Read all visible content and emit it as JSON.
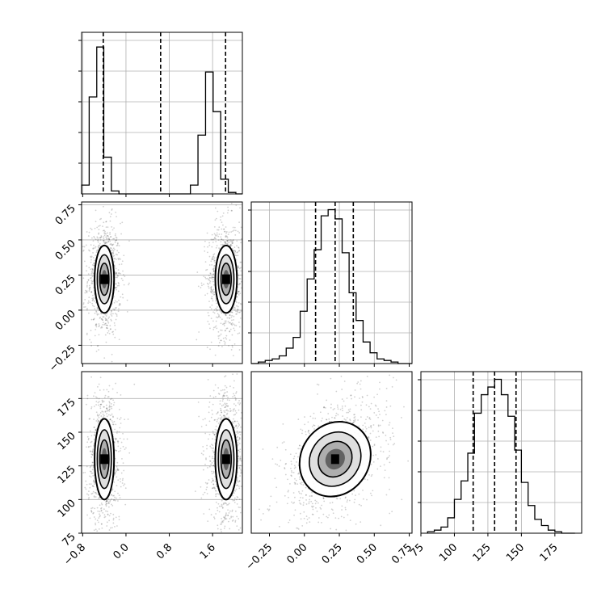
{
  "chart_data": [
    {
      "panel": "hist-param-1",
      "type": "bar",
      "x_ticks": [
        -0.8,
        0.0,
        0.8,
        1.6
      ],
      "x_tick_labels": [
        "−0.8",
        "0.0",
        "0.8",
        "1.6"
      ],
      "xlim": [
        -0.82,
        2.15
      ],
      "bin_edges": [
        -0.82,
        -0.68,
        -0.54,
        -0.41,
        -0.27,
        -0.13,
        0.01,
        1.19,
        1.33,
        1.47,
        1.61,
        1.75,
        1.89,
        2.03,
        2.15
      ],
      "values": [
        0.06,
        0.66,
        1.0,
        0.25,
        0.02,
        0.0,
        0.0,
        0.06,
        0.4,
        0.83,
        0.56,
        0.1,
        0.01,
        0.0
      ],
      "quantile_lines": [
        -0.42,
        0.64,
        1.84
      ],
      "ylim": [
        0,
        1.1
      ]
    },
    {
      "panel": "hist-param-2",
      "type": "bar",
      "x_ticks": [
        -0.25,
        0.0,
        0.25,
        0.5,
        0.75
      ],
      "xlim": [
        -0.38,
        0.77
      ],
      "bin_edges": [
        -0.38,
        -0.33,
        -0.28,
        -0.23,
        -0.18,
        -0.13,
        -0.08,
        -0.03,
        0.02,
        0.07,
        0.12,
        0.17,
        0.22,
        0.27,
        0.32,
        0.37,
        0.42,
        0.47,
        0.52,
        0.57,
        0.62,
        0.67,
        0.72,
        0.77
      ],
      "values": [
        0.0,
        0.01,
        0.02,
        0.03,
        0.05,
        0.1,
        0.17,
        0.34,
        0.55,
        0.74,
        0.96,
        1.0,
        0.94,
        0.72,
        0.46,
        0.28,
        0.14,
        0.07,
        0.03,
        0.02,
        0.01,
        0.0,
        0.0
      ],
      "quantile_lines": [
        0.08,
        0.22,
        0.35
      ],
      "ylim": [
        0,
        1.05
      ]
    },
    {
      "panel": "hist-param-3",
      "type": "bar",
      "x_ticks": [
        75,
        100,
        125,
        150,
        175
      ],
      "x_tick_labels": [
        "75",
        "100",
        "125",
        "150",
        "175"
      ],
      "xlim": [
        75,
        195
      ],
      "bin_edges": [
        80,
        85,
        90,
        95,
        100,
        105,
        110,
        115,
        120,
        125,
        130,
        135,
        140,
        145,
        150,
        155,
        160,
        165,
        170,
        175,
        180,
        185,
        190
      ],
      "values": [
        0.01,
        0.02,
        0.04,
        0.1,
        0.22,
        0.34,
        0.52,
        0.78,
        0.9,
        0.95,
        1.0,
        0.9,
        0.76,
        0.54,
        0.33,
        0.18,
        0.09,
        0.05,
        0.02,
        0.01,
        0.0,
        0.0
      ],
      "quantile_lines": [
        114,
        130,
        146
      ],
      "ylim": [
        0,
        1.05
      ]
    },
    {
      "panel": "scatter-param-1-vs-param-2",
      "type": "scatter",
      "xlim": [
        -0.82,
        2.15
      ],
      "ylim": [
        -0.38,
        0.77
      ],
      "y_ticks": [
        -0.25,
        0.0,
        0.25,
        0.5,
        0.75
      ],
      "y_tick_labels": [
        "−0.25",
        "0.00",
        "0.25",
        "0.50",
        "0.75"
      ],
      "clusters": [
        {
          "center_x": -0.4,
          "center_y": 0.22,
          "spread_x": 0.09,
          "spread_y": 0.12
        },
        {
          "center_x": 1.85,
          "center_y": 0.22,
          "spread_x": 0.1,
          "spread_y": 0.12
        }
      ],
      "contour_levels": [
        0.39,
        0.86,
        1.39
      ]
    },
    {
      "panel": "scatter-param-1-vs-param-3",
      "type": "scatter",
      "xlim": [
        -0.82,
        2.15
      ],
      "ylim": [
        75,
        195
      ],
      "y_ticks": [
        75,
        100,
        125,
        150,
        175
      ],
      "y_tick_labels": [
        "75",
        "100",
        "125",
        "150",
        "175"
      ],
      "clusters": [
        {
          "center_x": -0.4,
          "center_y": 130,
          "spread_x": 0.09,
          "spread_y": 15
        },
        {
          "center_x": 1.85,
          "center_y": 130,
          "spread_x": 0.1,
          "spread_y": 15
        }
      ],
      "contour_levels": [
        0.39,
        0.86,
        1.39
      ]
    },
    {
      "panel": "scatter-param-2-vs-param-3",
      "type": "scatter",
      "xlim": [
        -0.38,
        0.77
      ],
      "ylim": [
        75,
        195
      ],
      "clusters": [
        {
          "center_x": 0.22,
          "center_y": 130,
          "spread_x": 0.12,
          "spread_y": 15,
          "correlation": 0.45
        }
      ],
      "contour_levels": [
        0.39,
        0.86,
        1.39
      ]
    }
  ]
}
